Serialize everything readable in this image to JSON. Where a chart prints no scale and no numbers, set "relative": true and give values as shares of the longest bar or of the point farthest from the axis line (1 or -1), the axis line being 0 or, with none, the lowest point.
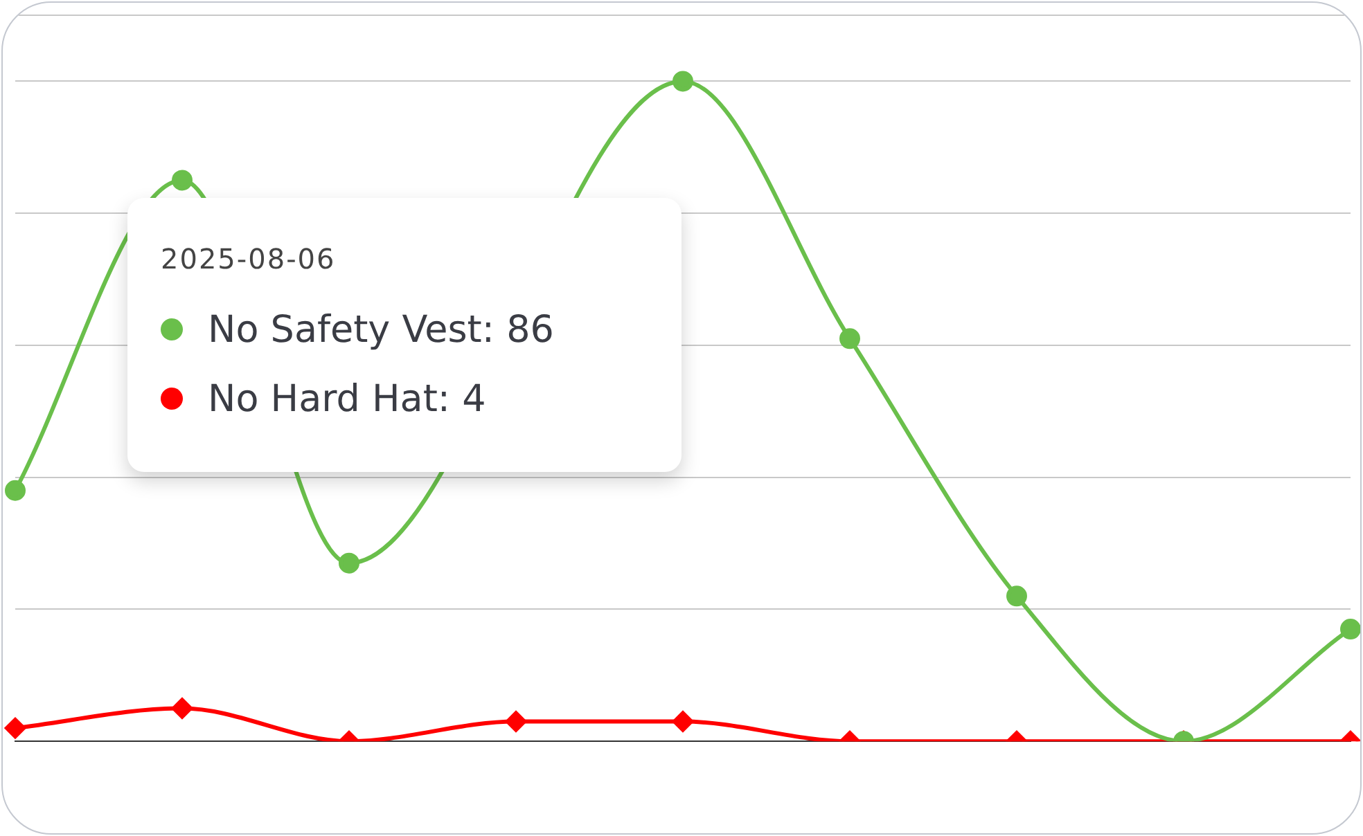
{
  "chart_data": {
    "type": "line",
    "relative": true,
    "grid": "y",
    "legend": false,
    "categories": [
      null,
      null,
      null,
      null,
      null,
      null,
      null,
      null,
      null
    ],
    "annotations": [
      "2025-08-06",
      "No Safety Vest: 86",
      "No Hard Hat: 4"
    ],
    "series": [
      {
        "color": "#6abf4b",
        "marker": "circle",
        "values": [
          0.38,
          0.85,
          0.27,
          null,
          1,
          0.61,
          0.22,
          0,
          0.17
        ]
      },
      {
        "color": "#ff0000",
        "marker": "diamond",
        "values": [
          0.02,
          0.05,
          0,
          0.03,
          0.03,
          0,
          0,
          0,
          0
        ]
      }
    ]
  }
}
